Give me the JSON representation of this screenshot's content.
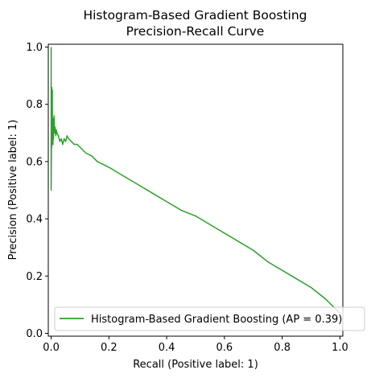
{
  "chart_data": {
    "type": "line",
    "title": [
      "Histogram-Based Gradient Boosting",
      "Precision-Recall Curve"
    ],
    "xlabel": "Recall (Positive label: 1)",
    "ylabel": "Precision (Positive label: 1)",
    "xlim": [
      -0.01,
      1.01
    ],
    "ylim": [
      -0.01,
      1.01
    ],
    "xticks": [
      0.0,
      0.2,
      0.4,
      0.6,
      0.8,
      1.0
    ],
    "xtick_labels": [
      "0.0",
      "0.2",
      "0.4",
      "0.6",
      "0.8",
      "1.0"
    ],
    "yticks": [
      0.0,
      0.2,
      0.4,
      0.6,
      0.8,
      1.0
    ],
    "ytick_labels": [
      "0.0",
      "0.2",
      "0.4",
      "0.6",
      "0.8",
      "1.0"
    ],
    "grid": false,
    "legend_position": "lower-right",
    "series": [
      {
        "name": "Histogram-Based Gradient Boosting (AP = 0.39)",
        "color": "#2ca02c",
        "x": [
          0.0,
          0.0,
          0.002,
          0.002,
          0.004,
          0.004,
          0.006,
          0.006,
          0.008,
          0.008,
          0.01,
          0.012,
          0.014,
          0.016,
          0.018,
          0.02,
          0.025,
          0.03,
          0.035,
          0.04,
          0.045,
          0.05,
          0.055,
          0.06,
          0.07,
          0.08,
          0.09,
          0.1,
          0.12,
          0.14,
          0.16,
          0.18,
          0.2,
          0.25,
          0.3,
          0.35,
          0.4,
          0.45,
          0.5,
          0.55,
          0.6,
          0.65,
          0.7,
          0.75,
          0.8,
          0.85,
          0.9,
          0.95,
          0.98,
          1.0
        ],
        "y": [
          1.0,
          0.5,
          0.86,
          0.65,
          0.85,
          0.7,
          0.75,
          0.66,
          0.72,
          0.68,
          0.76,
          0.7,
          0.72,
          0.69,
          0.71,
          0.7,
          0.69,
          0.67,
          0.68,
          0.66,
          0.68,
          0.67,
          0.69,
          0.68,
          0.67,
          0.66,
          0.66,
          0.65,
          0.63,
          0.62,
          0.6,
          0.59,
          0.58,
          0.55,
          0.52,
          0.49,
          0.46,
          0.43,
          0.41,
          0.38,
          0.35,
          0.32,
          0.29,
          0.25,
          0.22,
          0.19,
          0.16,
          0.12,
          0.09,
          0.07
        ]
      }
    ]
  }
}
